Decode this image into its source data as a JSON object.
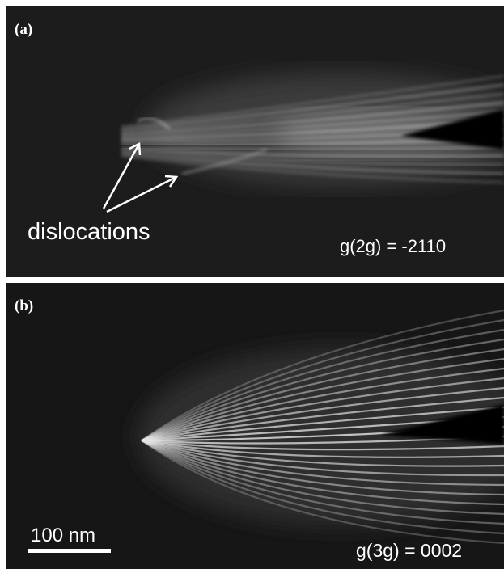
{
  "panels": [
    {
      "label": "(a)",
      "annotation": "dislocations",
      "caption": "g(2g) = -2110"
    },
    {
      "label": "(b)",
      "scale_bar": "100 nm",
      "caption": "g(3g) = 0002"
    }
  ]
}
